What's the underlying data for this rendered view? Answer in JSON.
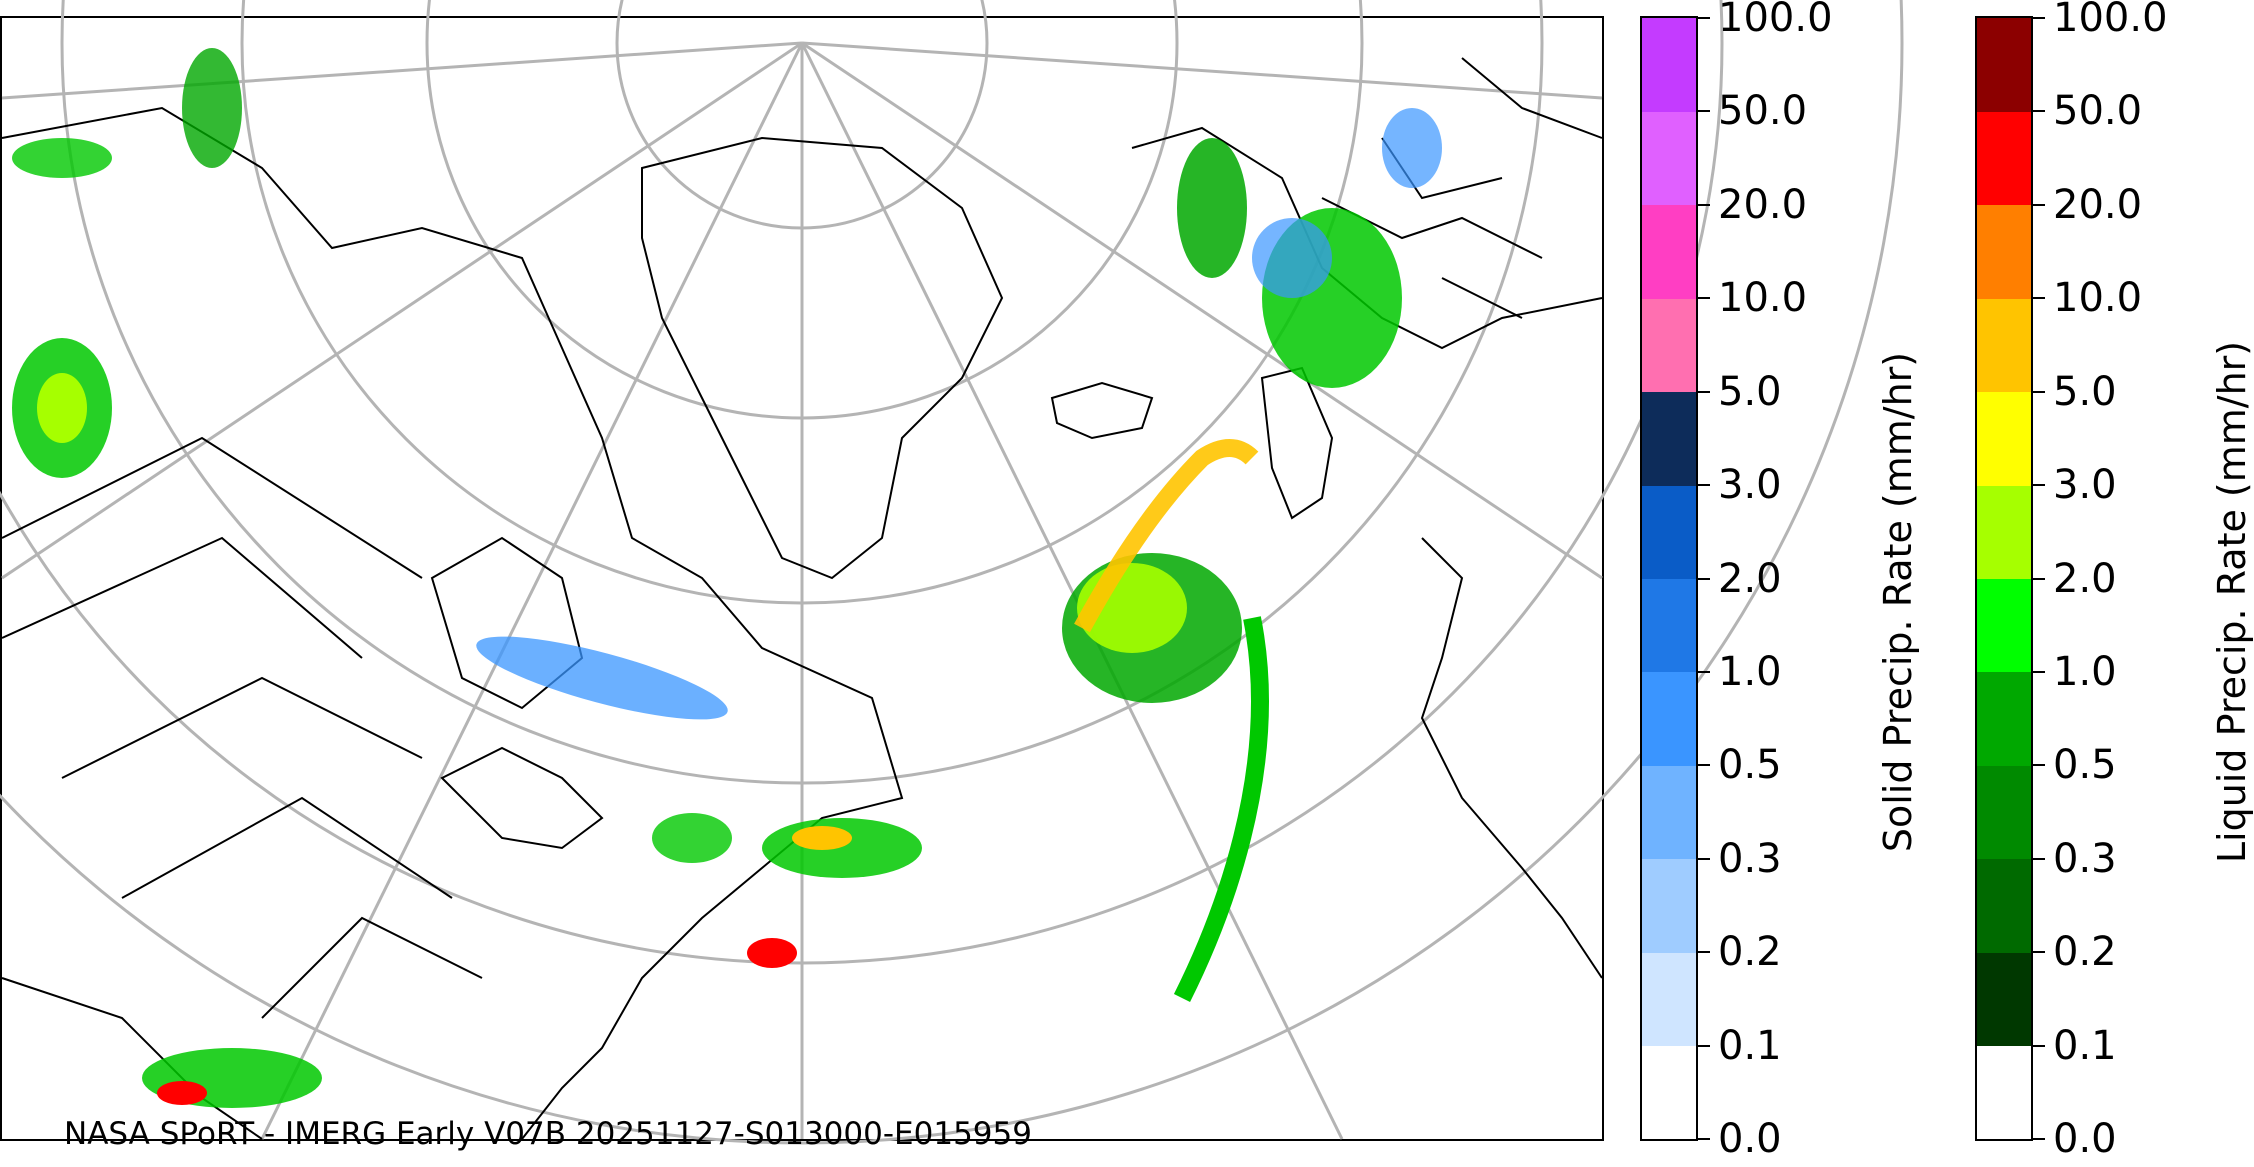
{
  "caption": "NASA SPoRT - IMERG Early V07B 20251127-S013000-E015959",
  "solid_colorbar": {
    "label": "Solid Precip. Rate (mm/hr)",
    "ticks": [
      "0.0",
      "0.1",
      "0.2",
      "0.3",
      "0.5",
      "1.0",
      "2.0",
      "3.0",
      "5.0",
      "10.0",
      "20.0",
      "50.0",
      "100.0"
    ],
    "colors": [
      "#ffffff",
      "#cfe5ff",
      "#9fccff",
      "#6fb3ff",
      "#3a95ff",
      "#1f78e6",
      "#0a5cc7",
      "#0d2c5a",
      "#ff6fb0",
      "#ff3ec3",
      "#e060ff",
      "#c43bff",
      "#9b00d2"
    ]
  },
  "liquid_colorbar": {
    "label": "Liquid Precip. Rate (mm/hr)",
    "ticks": [
      "0.0",
      "0.1",
      "0.2",
      "0.3",
      "0.5",
      "1.0",
      "2.0",
      "3.0",
      "5.0",
      "10.0",
      "20.0",
      "50.0",
      "100.0"
    ],
    "colors": [
      "#ffffff",
      "#003800",
      "#006a00",
      "#008a00",
      "#00a800",
      "#00ff00",
      "#a6ff00",
      "#ffff00",
      "#ffc400",
      "#ff7f00",
      "#ff0000",
      "#8c0000",
      "#3d0000"
    ]
  }
}
